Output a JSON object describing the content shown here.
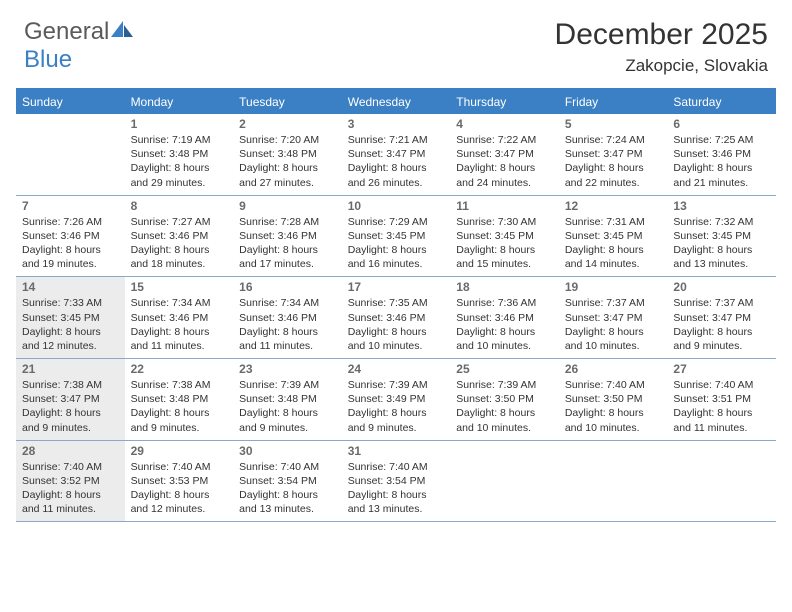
{
  "logo": {
    "text_gray": "General",
    "text_blue": "Blue"
  },
  "header": {
    "month_title": "December 2025",
    "location": "Zakopcie, Slovakia"
  },
  "colors": {
    "brand_blue": "#3b7fc4",
    "shaded_bg": "#ececec",
    "text_gray": "#5a5a5a",
    "body_text": "#333333",
    "divider": "#8aa8c8"
  },
  "weekdays": [
    "Sunday",
    "Monday",
    "Tuesday",
    "Wednesday",
    "Thursday",
    "Friday",
    "Saturday"
  ],
  "weeks": [
    [
      {
        "num": "",
        "sunrise": "",
        "sunset": "",
        "daylight": "",
        "shaded": false
      },
      {
        "num": "1",
        "sunrise": "Sunrise: 7:19 AM",
        "sunset": "Sunset: 3:48 PM",
        "daylight": "Daylight: 8 hours and 29 minutes.",
        "shaded": false
      },
      {
        "num": "2",
        "sunrise": "Sunrise: 7:20 AM",
        "sunset": "Sunset: 3:48 PM",
        "daylight": "Daylight: 8 hours and 27 minutes.",
        "shaded": false
      },
      {
        "num": "3",
        "sunrise": "Sunrise: 7:21 AM",
        "sunset": "Sunset: 3:47 PM",
        "daylight": "Daylight: 8 hours and 26 minutes.",
        "shaded": false
      },
      {
        "num": "4",
        "sunrise": "Sunrise: 7:22 AM",
        "sunset": "Sunset: 3:47 PM",
        "daylight": "Daylight: 8 hours and 24 minutes.",
        "shaded": false
      },
      {
        "num": "5",
        "sunrise": "Sunrise: 7:24 AM",
        "sunset": "Sunset: 3:47 PM",
        "daylight": "Daylight: 8 hours and 22 minutes.",
        "shaded": false
      },
      {
        "num": "6",
        "sunrise": "Sunrise: 7:25 AM",
        "sunset": "Sunset: 3:46 PM",
        "daylight": "Daylight: 8 hours and 21 minutes.",
        "shaded": false
      }
    ],
    [
      {
        "num": "7",
        "sunrise": "Sunrise: 7:26 AM",
        "sunset": "Sunset: 3:46 PM",
        "daylight": "Daylight: 8 hours and 19 minutes.",
        "shaded": false
      },
      {
        "num": "8",
        "sunrise": "Sunrise: 7:27 AM",
        "sunset": "Sunset: 3:46 PM",
        "daylight": "Daylight: 8 hours and 18 minutes.",
        "shaded": false
      },
      {
        "num": "9",
        "sunrise": "Sunrise: 7:28 AM",
        "sunset": "Sunset: 3:46 PM",
        "daylight": "Daylight: 8 hours and 17 minutes.",
        "shaded": false
      },
      {
        "num": "10",
        "sunrise": "Sunrise: 7:29 AM",
        "sunset": "Sunset: 3:45 PM",
        "daylight": "Daylight: 8 hours and 16 minutes.",
        "shaded": false
      },
      {
        "num": "11",
        "sunrise": "Sunrise: 7:30 AM",
        "sunset": "Sunset: 3:45 PM",
        "daylight": "Daylight: 8 hours and 15 minutes.",
        "shaded": false
      },
      {
        "num": "12",
        "sunrise": "Sunrise: 7:31 AM",
        "sunset": "Sunset: 3:45 PM",
        "daylight": "Daylight: 8 hours and 14 minutes.",
        "shaded": false
      },
      {
        "num": "13",
        "sunrise": "Sunrise: 7:32 AM",
        "sunset": "Sunset: 3:45 PM",
        "daylight": "Daylight: 8 hours and 13 minutes.",
        "shaded": false
      }
    ],
    [
      {
        "num": "14",
        "sunrise": "Sunrise: 7:33 AM",
        "sunset": "Sunset: 3:45 PM",
        "daylight": "Daylight: 8 hours and 12 minutes.",
        "shaded": true
      },
      {
        "num": "15",
        "sunrise": "Sunrise: 7:34 AM",
        "sunset": "Sunset: 3:46 PM",
        "daylight": "Daylight: 8 hours and 11 minutes.",
        "shaded": false
      },
      {
        "num": "16",
        "sunrise": "Sunrise: 7:34 AM",
        "sunset": "Sunset: 3:46 PM",
        "daylight": "Daylight: 8 hours and 11 minutes.",
        "shaded": false
      },
      {
        "num": "17",
        "sunrise": "Sunrise: 7:35 AM",
        "sunset": "Sunset: 3:46 PM",
        "daylight": "Daylight: 8 hours and 10 minutes.",
        "shaded": false
      },
      {
        "num": "18",
        "sunrise": "Sunrise: 7:36 AM",
        "sunset": "Sunset: 3:46 PM",
        "daylight": "Daylight: 8 hours and 10 minutes.",
        "shaded": false
      },
      {
        "num": "19",
        "sunrise": "Sunrise: 7:37 AM",
        "sunset": "Sunset: 3:47 PM",
        "daylight": "Daylight: 8 hours and 10 minutes.",
        "shaded": false
      },
      {
        "num": "20",
        "sunrise": "Sunrise: 7:37 AM",
        "sunset": "Sunset: 3:47 PM",
        "daylight": "Daylight: 8 hours and 9 minutes.",
        "shaded": false
      }
    ],
    [
      {
        "num": "21",
        "sunrise": "Sunrise: 7:38 AM",
        "sunset": "Sunset: 3:47 PM",
        "daylight": "Daylight: 8 hours and 9 minutes.",
        "shaded": true
      },
      {
        "num": "22",
        "sunrise": "Sunrise: 7:38 AM",
        "sunset": "Sunset: 3:48 PM",
        "daylight": "Daylight: 8 hours and 9 minutes.",
        "shaded": false
      },
      {
        "num": "23",
        "sunrise": "Sunrise: 7:39 AM",
        "sunset": "Sunset: 3:48 PM",
        "daylight": "Daylight: 8 hours and 9 minutes.",
        "shaded": false
      },
      {
        "num": "24",
        "sunrise": "Sunrise: 7:39 AM",
        "sunset": "Sunset: 3:49 PM",
        "daylight": "Daylight: 8 hours and 9 minutes.",
        "shaded": false
      },
      {
        "num": "25",
        "sunrise": "Sunrise: 7:39 AM",
        "sunset": "Sunset: 3:50 PM",
        "daylight": "Daylight: 8 hours and 10 minutes.",
        "shaded": false
      },
      {
        "num": "26",
        "sunrise": "Sunrise: 7:40 AM",
        "sunset": "Sunset: 3:50 PM",
        "daylight": "Daylight: 8 hours and 10 minutes.",
        "shaded": false
      },
      {
        "num": "27",
        "sunrise": "Sunrise: 7:40 AM",
        "sunset": "Sunset: 3:51 PM",
        "daylight": "Daylight: 8 hours and 11 minutes.",
        "shaded": false
      }
    ],
    [
      {
        "num": "28",
        "sunrise": "Sunrise: 7:40 AM",
        "sunset": "Sunset: 3:52 PM",
        "daylight": "Daylight: 8 hours and 11 minutes.",
        "shaded": true
      },
      {
        "num": "29",
        "sunrise": "Sunrise: 7:40 AM",
        "sunset": "Sunset: 3:53 PM",
        "daylight": "Daylight: 8 hours and 12 minutes.",
        "shaded": false
      },
      {
        "num": "30",
        "sunrise": "Sunrise: 7:40 AM",
        "sunset": "Sunset: 3:54 PM",
        "daylight": "Daylight: 8 hours and 13 minutes.",
        "shaded": false
      },
      {
        "num": "31",
        "sunrise": "Sunrise: 7:40 AM",
        "sunset": "Sunset: 3:54 PM",
        "daylight": "Daylight: 8 hours and 13 minutes.",
        "shaded": false
      },
      {
        "num": "",
        "sunrise": "",
        "sunset": "",
        "daylight": "",
        "shaded": false
      },
      {
        "num": "",
        "sunrise": "",
        "sunset": "",
        "daylight": "",
        "shaded": false
      },
      {
        "num": "",
        "sunrise": "",
        "sunset": "",
        "daylight": "",
        "shaded": false
      }
    ]
  ]
}
